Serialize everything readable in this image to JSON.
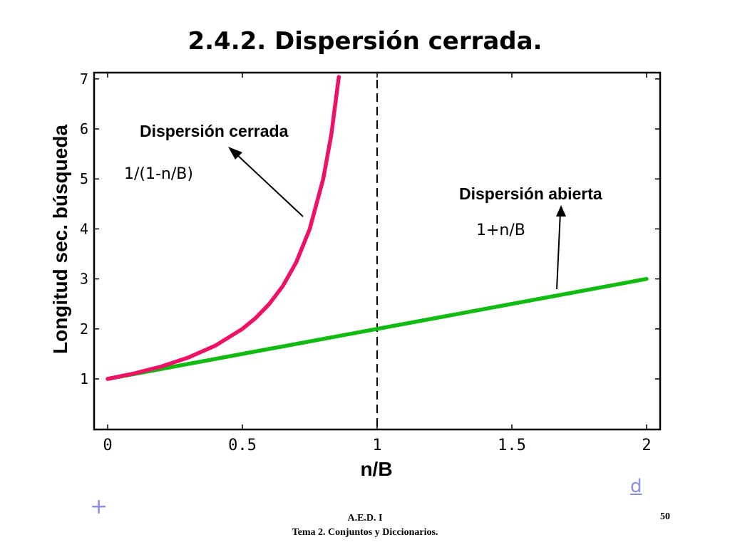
{
  "slide": {
    "title": "2.4.2. Dispersión cerrada.",
    "nav_next": "d",
    "nav_prev": "+",
    "footer_line1": "A.E.D. I",
    "footer_line2": "Tema 2. Conjuntos y Diccionarios.",
    "page_number": "50"
  },
  "chart_data": {
    "type": "line",
    "xlabel": "n/B",
    "ylabel": "Longitud sec. búsqueda",
    "xlim": [
      0,
      2
    ],
    "ylim": [
      0,
      7
    ],
    "x_ticks": [
      0,
      0.5,
      1,
      1.5,
      2
    ],
    "x_tick_labels": [
      "0",
      "0.5",
      "1",
      "1.5",
      "2"
    ],
    "y_ticks": [
      1,
      2,
      3,
      4,
      5,
      6,
      7
    ],
    "y_tick_labels": [
      "1",
      "2",
      "3",
      "4",
      "5",
      "6",
      "7"
    ],
    "grid": false,
    "vertical_reference_line": {
      "x": 1,
      "style": "dashed"
    },
    "series": [
      {
        "formula": "1/(1-n/B)",
        "label": "Dispersión cerrada",
        "color": "#ee1166",
        "x": [
          0,
          0.1,
          0.2,
          0.3,
          0.4,
          0.5,
          0.55,
          0.6,
          0.65,
          0.7,
          0.75,
          0.8,
          0.83,
          0.858
        ],
        "y": [
          1.0,
          1.111,
          1.25,
          1.429,
          1.667,
          2.0,
          2.222,
          2.5,
          2.857,
          3.333,
          4.0,
          5.0,
          5.882,
          7.04
        ]
      },
      {
        "formula": "1+n/B",
        "label": "Dispersión abierta",
        "color": "#11bb11",
        "x": [
          0,
          2
        ],
        "y": [
          1,
          3
        ]
      }
    ],
    "annotations": [
      {
        "text": "Dispersión cerrada",
        "kind": "label"
      },
      {
        "text": "1/(1-n/B)",
        "kind": "formula"
      },
      {
        "text": "Dispersión abierta",
        "kind": "label"
      },
      {
        "text": "1+n/B",
        "kind": "formula"
      }
    ]
  }
}
